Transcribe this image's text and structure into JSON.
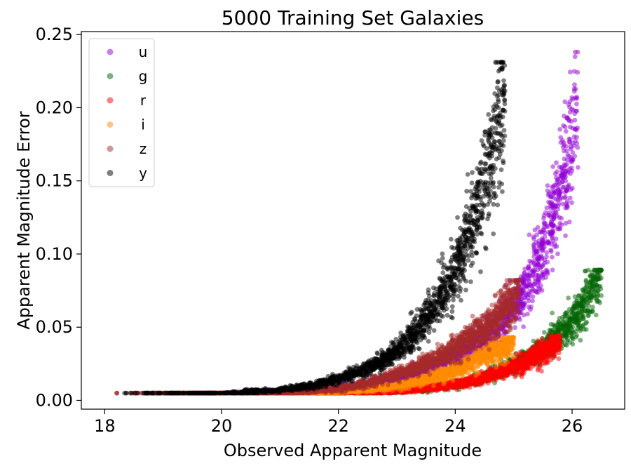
{
  "chart_data": {
    "type": "scatter",
    "title": "5000 Training Set Galaxies",
    "xlabel": "Observed Apparent Magnitude",
    "ylabel": "Apparent Magnitude Error",
    "xlim": [
      17.6,
      26.9
    ],
    "ylim": [
      -0.006,
      0.252
    ],
    "xticks": [
      "18",
      "20",
      "22",
      "24",
      "26"
    ],
    "yticks": [
      "0.00",
      "0.05",
      "0.10",
      "0.15",
      "0.20",
      "0.25"
    ],
    "grid": false,
    "legend_position": "upper-left",
    "points_per_series": 5000,
    "series": [
      {
        "name": "u",
        "color": "#9400d3",
        "x_range": [
          18.4,
          26.1
        ],
        "y_floor": 0.005,
        "y_max": 0.238,
        "scatter": 0.02,
        "curve": [
          [
            20.0,
            0.005
          ],
          [
            21.0,
            0.006
          ],
          [
            22.0,
            0.008
          ],
          [
            23.0,
            0.016
          ],
          [
            24.0,
            0.03
          ],
          [
            24.5,
            0.042
          ],
          [
            25.0,
            0.064
          ],
          [
            25.5,
            0.103
          ],
          [
            26.0,
            0.182
          ]
        ]
      },
      {
        "name": "g",
        "color": "#006400",
        "x_range": [
          18.4,
          26.5
        ],
        "y_floor": 0.005,
        "y_max": 0.089,
        "scatter": 0.003,
        "curve": [
          [
            20.0,
            0.005
          ],
          [
            21.0,
            0.005
          ],
          [
            22.0,
            0.005
          ],
          [
            23.0,
            0.006
          ],
          [
            24.0,
            0.011
          ],
          [
            25.0,
            0.024
          ],
          [
            25.5,
            0.036
          ],
          [
            26.0,
            0.054
          ],
          [
            26.5,
            0.089
          ]
        ]
      },
      {
        "name": "r",
        "color": "#ff0000",
        "x_range": [
          18.4,
          25.8
        ],
        "y_floor": 0.005,
        "y_max": 0.044,
        "scatter": 0.0015,
        "curve": [
          [
            20.0,
            0.005
          ],
          [
            22.0,
            0.005
          ],
          [
            23.0,
            0.006
          ],
          [
            24.0,
            0.011
          ],
          [
            24.5,
            0.016
          ],
          [
            25.0,
            0.023
          ],
          [
            25.5,
            0.033
          ],
          [
            25.8,
            0.041
          ]
        ]
      },
      {
        "name": "i",
        "color": "#ff8c00",
        "x_range": [
          18.4,
          25.0
        ],
        "y_floor": 0.005,
        "y_max": 0.043,
        "scatter": 0.0015,
        "curve": [
          [
            20.0,
            0.005
          ],
          [
            21.0,
            0.005
          ],
          [
            22.0,
            0.006
          ],
          [
            23.0,
            0.01
          ],
          [
            24.0,
            0.021
          ],
          [
            24.5,
            0.03
          ],
          [
            25.0,
            0.04
          ]
        ]
      },
      {
        "name": "z",
        "color": "#a52a2a",
        "x_range": [
          18.1,
          25.1
        ],
        "y_floor": 0.005,
        "y_max": 0.082,
        "scatter": 0.003,
        "curve": [
          [
            20.0,
            0.005
          ],
          [
            21.0,
            0.005
          ],
          [
            22.0,
            0.008
          ],
          [
            23.0,
            0.018
          ],
          [
            24.0,
            0.036
          ],
          [
            24.5,
            0.05
          ],
          [
            25.0,
            0.07
          ]
        ]
      },
      {
        "name": "y",
        "color": "#000000",
        "x_range": [
          18.1,
          24.85
        ],
        "y_floor": 0.005,
        "y_max": 0.231,
        "scatter": 0.02,
        "curve": [
          [
            20.0,
            0.005
          ],
          [
            21.0,
            0.007
          ],
          [
            21.5,
            0.01
          ],
          [
            22.0,
            0.015
          ],
          [
            22.5,
            0.022
          ],
          [
            23.0,
            0.034
          ],
          [
            23.5,
            0.056
          ],
          [
            24.0,
            0.09
          ],
          [
            24.5,
            0.15
          ],
          [
            24.8,
            0.2
          ]
        ]
      }
    ]
  }
}
